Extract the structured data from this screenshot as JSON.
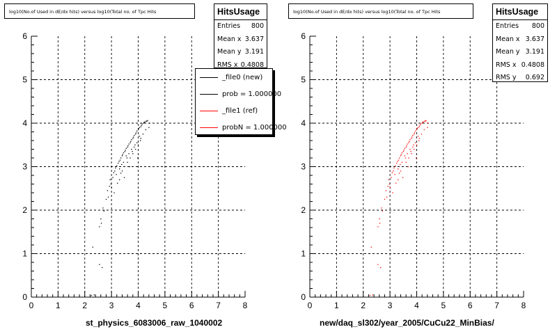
{
  "panels": [
    {
      "title": "log10(No.of Used in dE/dx hits) versus log10(Total no. of Tpc Hits",
      "xlabel": "st_physics_6083006_raw_1040002",
      "marker_color": "#000000",
      "stats": {
        "name": "HitsUsage",
        "rows": [
          {
            "label": "Entries",
            "value": "800"
          },
          {
            "label": "Mean x",
            "value": "3.637"
          },
          {
            "label": "Mean y",
            "value": "3.191"
          },
          {
            "label": "RMS x",
            "value": "0.4808"
          }
        ]
      }
    },
    {
      "title": "log10(No.of Used in dE/dx hits) versus log10(Total no. of Tpc Hits",
      "xlabel": "new/daq_sl302/year_2005/CuCu22_MinBias/",
      "marker_color": "#ff0000",
      "stats": {
        "name": "HitsUsage",
        "rows": [
          {
            "label": "Entries",
            "value": "800"
          },
          {
            "label": "Mean x",
            "value": "3.637"
          },
          {
            "label": "Mean y",
            "value": "3.191"
          },
          {
            "label": "RMS x",
            "value": "0.4808"
          },
          {
            "label": "RMS y",
            "value": "0.692"
          }
        ]
      }
    }
  ],
  "legend": {
    "entries": [
      {
        "label": "_file0 (new)",
        "color": "#000000"
      },
      {
        "label": "prob = 1.000000",
        "color": "#000000"
      },
      {
        "label": "_file1 (ref)",
        "color": "#ff0000"
      },
      {
        "label": "probN = 1.000000",
        "color": "#ff0000"
      }
    ]
  },
  "chart_data": [
    {
      "type": "scatter",
      "title": "log10(No.of Used in dE/dx hits) versus log10(Total no. of Tpc Hits",
      "xlabel": "st_physics_6083006_raw_1040002",
      "ylabel": "",
      "xlim": [
        0,
        8
      ],
      "ylim": [
        0,
        6
      ],
      "xticks": [
        "0",
        "1",
        "2",
        "3",
        "4",
        "5",
        "6",
        "7",
        "8"
      ],
      "yticks": [
        "0",
        "1",
        "2",
        "3",
        "4",
        "5",
        "6"
      ],
      "grid": true,
      "series": [
        {
          "color": "#000000",
          "points": [
            [
              2.25,
              0.04
            ],
            [
              2.35,
              0.05
            ],
            [
              2.3,
              1.15
            ],
            [
              2.55,
              0.75
            ],
            [
              2.65,
              0.68
            ],
            [
              2.55,
              1.62
            ],
            [
              2.62,
              1.7
            ],
            [
              2.6,
              1.8
            ],
            [
              2.68,
              2.05
            ],
            [
              2.72,
              1.98
            ],
            [
              2.8,
              2.25
            ],
            [
              2.85,
              2.45
            ],
            [
              2.88,
              2.3
            ],
            [
              2.92,
              2.55
            ],
            [
              2.95,
              2.7
            ],
            [
              2.98,
              2.6
            ],
            [
              3.0,
              2.52
            ],
            [
              3.05,
              2.75
            ],
            [
              3.08,
              2.86
            ],
            [
              3.1,
              2.4
            ],
            [
              3.12,
              2.9
            ],
            [
              3.15,
              2.97
            ],
            [
              3.18,
              2.82
            ],
            [
              3.2,
              3.02
            ],
            [
              3.22,
              2.62
            ],
            [
              3.25,
              3.08
            ],
            [
              3.28,
              3.12
            ],
            [
              3.3,
              2.95
            ],
            [
              3.32,
              3.15
            ],
            [
              3.35,
              3.2
            ],
            [
              3.38,
              3.05
            ],
            [
              3.4,
              3.25
            ],
            [
              3.42,
              3.28
            ],
            [
              3.45,
              3.32
            ],
            [
              3.48,
              2.75
            ],
            [
              3.5,
              3.35
            ],
            [
              3.52,
              3.38
            ],
            [
              3.55,
              3.42
            ],
            [
              3.58,
              3.2
            ],
            [
              3.6,
              3.45
            ],
            [
              3.62,
              3.48
            ],
            [
              3.65,
              3.52
            ],
            [
              3.68,
              3.0
            ],
            [
              3.7,
              3.55
            ],
            [
              3.72,
              3.58
            ],
            [
              3.75,
              3.62
            ],
            [
              3.78,
              3.35
            ],
            [
              3.8,
              3.65
            ],
            [
              3.82,
              3.68
            ],
            [
              3.85,
              3.72
            ],
            [
              3.88,
              3.5
            ],
            [
              3.9,
              3.75
            ],
            [
              3.92,
              3.78
            ],
            [
              3.95,
              3.82
            ],
            [
              3.98,
              3.2
            ],
            [
              4.0,
              3.85
            ],
            [
              4.02,
              3.88
            ],
            [
              4.05,
              3.9
            ],
            [
              4.08,
              3.6
            ],
            [
              4.1,
              3.92
            ],
            [
              4.12,
              3.95
            ],
            [
              4.15,
              3.98
            ],
            [
              4.18,
              3.75
            ],
            [
              4.2,
              4.0
            ],
            [
              4.22,
              4.02
            ],
            [
              4.25,
              4.03
            ],
            [
              4.28,
              3.85
            ],
            [
              4.3,
              4.05
            ],
            [
              4.32,
              4.04
            ],
            [
              4.35,
              4.06
            ],
            [
              4.4,
              3.9
            ],
            [
              4.42,
              4.0
            ],
            [
              3.35,
              2.85
            ],
            [
              3.45,
              3.1
            ],
            [
              3.55,
              3.25
            ],
            [
              3.65,
              3.3
            ],
            [
              3.75,
              3.4
            ],
            [
              3.85,
              3.45
            ],
            [
              3.95,
              3.55
            ],
            [
              4.05,
              3.7
            ],
            [
              3.3,
              2.7
            ],
            [
              3.4,
              2.9
            ],
            [
              3.6,
              3.1
            ],
            [
              3.7,
              3.2
            ],
            [
              3.8,
              3.3
            ],
            [
              3.9,
              3.4
            ],
            [
              4.0,
              3.5
            ],
            [
              4.1,
              3.65
            ]
          ]
        }
      ]
    },
    {
      "type": "scatter",
      "title": "log10(No.of Used in dE/dx hits) versus log10(Total no. of Tpc Hits",
      "xlabel": "new/daq_sl302/year_2005/CuCu22_MinBias/",
      "ylabel": "",
      "xlim": [
        0,
        8
      ],
      "ylim": [
        0,
        6
      ],
      "xticks": [
        "0",
        "1",
        "2",
        "3",
        "4",
        "5",
        "6",
        "7",
        "8"
      ],
      "yticks": [
        "0",
        "1",
        "2",
        "3",
        "4",
        "5",
        "6"
      ],
      "grid": true,
      "series": [
        {
          "color": "#ff0000",
          "points": [
            [
              2.25,
              0.04
            ],
            [
              2.35,
              0.05
            ],
            [
              2.3,
              1.15
            ],
            [
              2.55,
              0.75
            ],
            [
              2.65,
              0.68
            ],
            [
              2.55,
              1.62
            ],
            [
              2.62,
              1.7
            ],
            [
              2.6,
              1.8
            ],
            [
              2.68,
              2.05
            ],
            [
              2.72,
              1.98
            ],
            [
              2.8,
              2.25
            ],
            [
              2.85,
              2.45
            ],
            [
              2.88,
              2.3
            ],
            [
              2.92,
              2.55
            ],
            [
              2.95,
              2.7
            ],
            [
              2.98,
              2.6
            ],
            [
              3.0,
              2.52
            ],
            [
              3.05,
              2.75
            ],
            [
              3.08,
              2.86
            ],
            [
              3.1,
              2.4
            ],
            [
              3.12,
              2.9
            ],
            [
              3.15,
              2.97
            ],
            [
              3.18,
              2.82
            ],
            [
              3.2,
              3.02
            ],
            [
              3.22,
              2.62
            ],
            [
              3.25,
              3.08
            ],
            [
              3.28,
              3.12
            ],
            [
              3.3,
              2.95
            ],
            [
              3.32,
              3.15
            ],
            [
              3.35,
              3.2
            ],
            [
              3.38,
              3.05
            ],
            [
              3.4,
              3.25
            ],
            [
              3.42,
              3.28
            ],
            [
              3.45,
              3.32
            ],
            [
              3.48,
              2.75
            ],
            [
              3.5,
              3.35
            ],
            [
              3.52,
              3.38
            ],
            [
              3.55,
              3.42
            ],
            [
              3.58,
              3.2
            ],
            [
              3.6,
              3.45
            ],
            [
              3.62,
              3.48
            ],
            [
              3.65,
              3.52
            ],
            [
              3.68,
              3.0
            ],
            [
              3.7,
              3.55
            ],
            [
              3.72,
              3.58
            ],
            [
              3.75,
              3.62
            ],
            [
              3.78,
              3.35
            ],
            [
              3.8,
              3.65
            ],
            [
              3.82,
              3.68
            ],
            [
              3.85,
              3.72
            ],
            [
              3.88,
              3.5
            ],
            [
              3.9,
              3.75
            ],
            [
              3.92,
              3.78
            ],
            [
              3.95,
              3.82
            ],
            [
              3.98,
              3.2
            ],
            [
              4.0,
              3.85
            ],
            [
              4.02,
              3.88
            ],
            [
              4.05,
              3.9
            ],
            [
              4.08,
              3.6
            ],
            [
              4.1,
              3.92
            ],
            [
              4.12,
              3.95
            ],
            [
              4.15,
              3.98
            ],
            [
              4.18,
              3.75
            ],
            [
              4.2,
              4.0
            ],
            [
              4.22,
              4.02
            ],
            [
              4.25,
              4.03
            ],
            [
              4.28,
              3.85
            ],
            [
              4.3,
              4.05
            ],
            [
              4.32,
              4.04
            ],
            [
              4.35,
              4.06
            ],
            [
              4.4,
              3.9
            ],
            [
              4.42,
              4.0
            ],
            [
              3.35,
              2.85
            ],
            [
              3.45,
              3.1
            ],
            [
              3.55,
              3.25
            ],
            [
              3.65,
              3.3
            ],
            [
              3.75,
              3.4
            ],
            [
              3.85,
              3.45
            ],
            [
              3.95,
              3.55
            ],
            [
              4.05,
              3.7
            ],
            [
              3.3,
              2.7
            ],
            [
              3.4,
              2.9
            ],
            [
              3.6,
              3.1
            ],
            [
              3.7,
              3.2
            ],
            [
              3.8,
              3.3
            ],
            [
              3.9,
              3.4
            ],
            [
              4.0,
              3.5
            ],
            [
              4.1,
              3.65
            ]
          ]
        }
      ]
    }
  ]
}
